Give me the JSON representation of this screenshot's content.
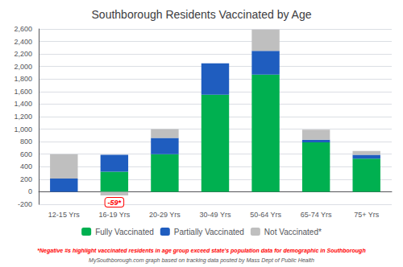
{
  "chart_data": {
    "type": "bar",
    "title": "Southborough Residents Vaccinated by Age",
    "categories": [
      "12-15 Yrs",
      "16-19 Yrs",
      "20-29 Yrs",
      "30-49 Yrs",
      "50-64 Yrs",
      "65-74 Yrs",
      "75+ Yrs"
    ],
    "series": [
      {
        "name": "Fully Vaccinated",
        "color": "#00b050",
        "values": [
          0,
          320,
          600,
          1550,
          1870,
          790,
          530
        ]
      },
      {
        "name": "Partially Vaccinated",
        "color": "#1f5dbf",
        "values": [
          210,
          270,
          260,
          500,
          380,
          40,
          60
        ]
      },
      {
        "name": "Not Vaccinated*",
        "color": "#bfbfbf",
        "values": [
          390,
          -59,
          140,
          0,
          340,
          160,
          60
        ]
      }
    ],
    "stacked": true,
    "ylim": [
      -200,
      2600
    ],
    "yticks": [
      -200,
      0,
      200,
      400,
      600,
      800,
      {
        "value": 1000,
        "label": "1,000"
      },
      {
        "value": 1200,
        "label": "1,200"
      },
      {
        "value": 1400,
        "label": "1,400"
      },
      {
        "value": 1600,
        "label": "1,600"
      },
      {
        "value": 1800,
        "label": "1,800"
      },
      {
        "value": 2000,
        "label": "2,000"
      },
      {
        "value": 2200,
        "label": "2,200"
      },
      {
        "value": 2400,
        "label": "2,400"
      },
      {
        "value": 2600,
        "label": "2,600"
      }
    ],
    "grid": true,
    "legend": "bottom",
    "annotations": [
      {
        "text": "-59*",
        "x": "16-19 Yrs",
        "y": -59,
        "color": "#ff0000"
      }
    ],
    "footnotes": [
      {
        "text": "*Negative #s highlight vaccinated residents in age group exceed state's population data for demographic in Southborough",
        "color": "#ff0000"
      },
      {
        "text": "MySouthborough.com graph based on tracking data posted by Mass Dept of Public Health",
        "color": "#555555"
      }
    ]
  }
}
